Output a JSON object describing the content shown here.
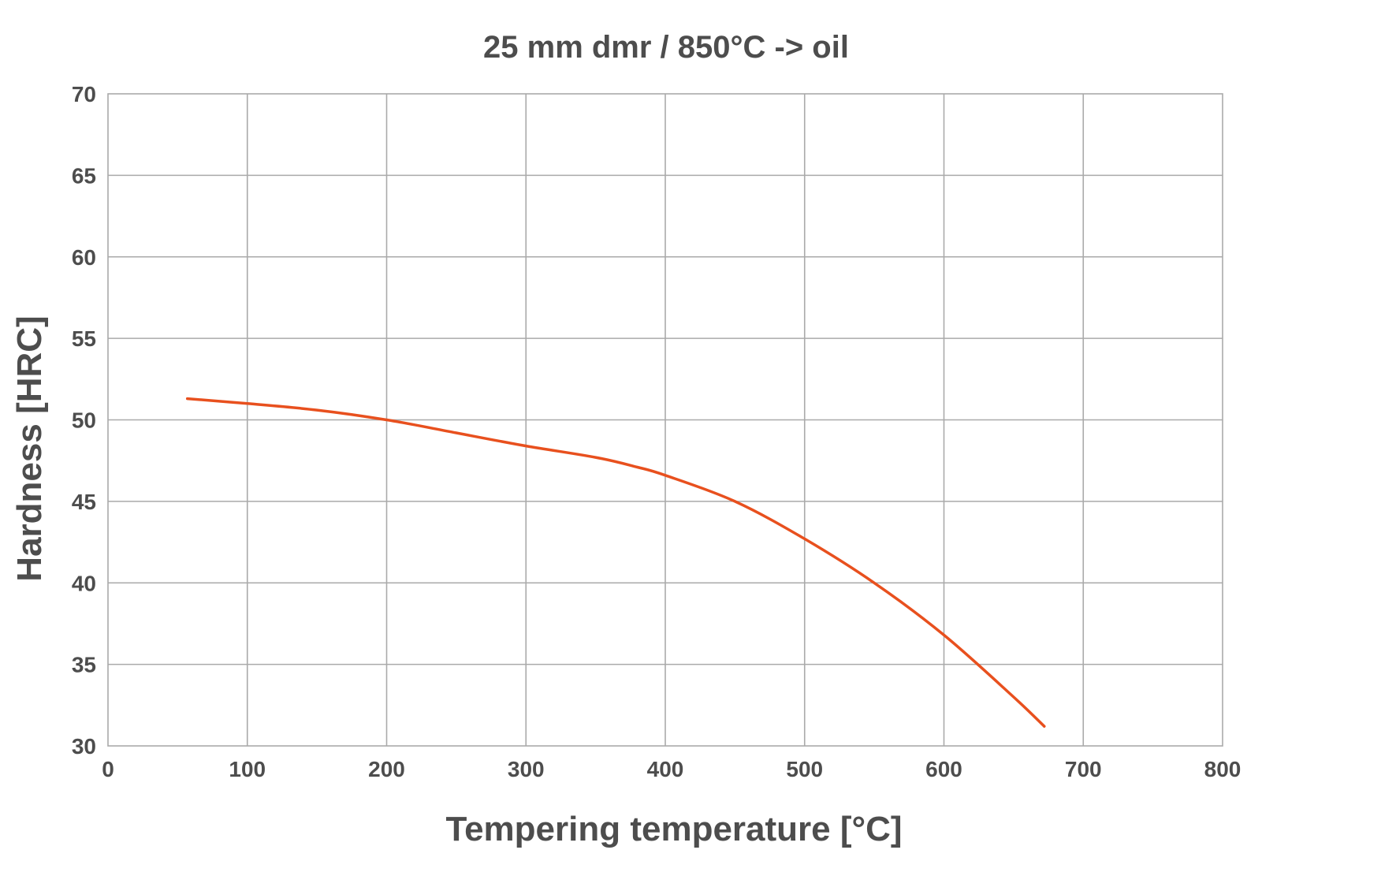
{
  "chart_data": {
    "type": "line",
    "title": "25 mm dmr / 850°C  -> oil",
    "xlabel": "Tempering temperature [°C]",
    "ylabel": "Hardness [HRC]",
    "xlim": [
      0,
      800
    ],
    "ylim": [
      30,
      70
    ],
    "x_ticks": [
      0,
      100,
      200,
      300,
      400,
      500,
      600,
      700,
      800
    ],
    "y_ticks": [
      30,
      35,
      40,
      45,
      50,
      55,
      60,
      65,
      70
    ],
    "x_tick_labels": [
      "0",
      "100",
      "200",
      "300",
      "400",
      "500",
      "600",
      "700",
      "800"
    ],
    "y_tick_labels": [
      "30",
      "35",
      "40",
      "45",
      "50",
      "55",
      "60",
      "65",
      "70"
    ],
    "grid": true,
    "series": [
      {
        "color": "#e8501e",
        "x": [
          57,
          100,
          150,
          200,
          250,
          300,
          350,
          380,
          400,
          450,
          500,
          550,
          600,
          650,
          672
        ],
        "y": [
          51.3,
          51.0,
          50.6,
          50.0,
          49.2,
          48.4,
          47.7,
          47.1,
          46.6,
          45.0,
          42.7,
          40.0,
          36.8,
          33.0,
          31.2
        ]
      }
    ]
  }
}
